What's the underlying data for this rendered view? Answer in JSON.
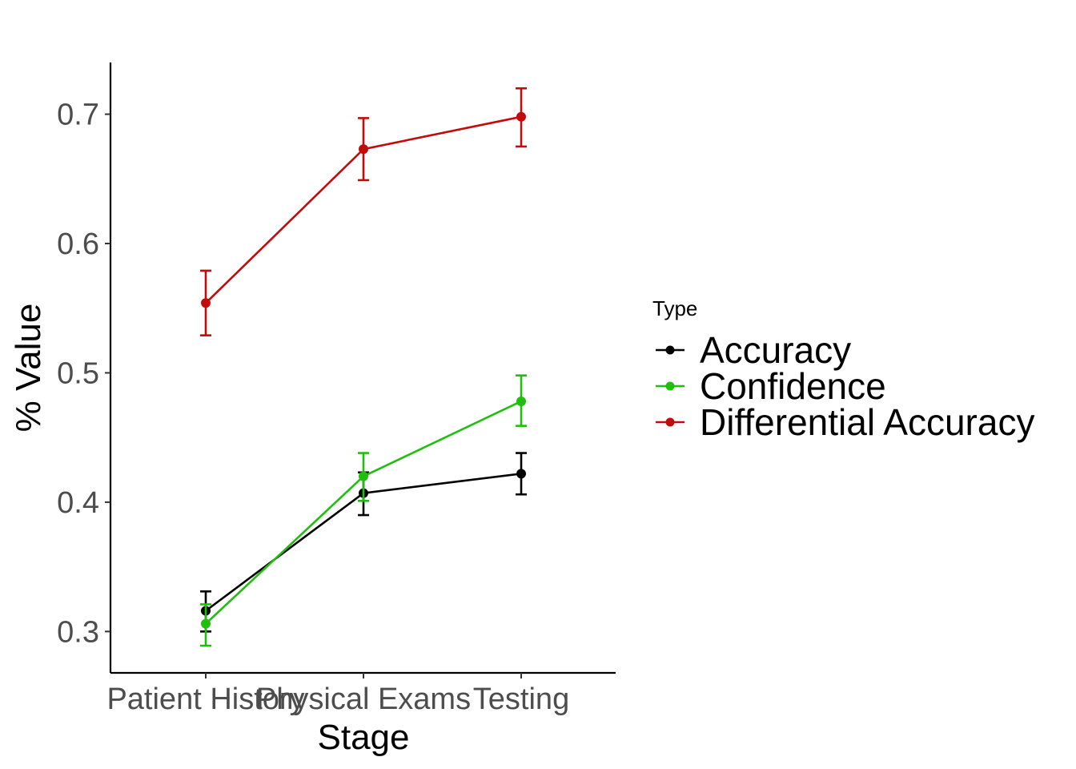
{
  "chart_data": {
    "type": "line",
    "xlabel": "Stage",
    "ylabel": "% Value",
    "categories": [
      "Patient History",
      "Physical Exams",
      "Testing"
    ],
    "ylim": [
      0.268,
      0.74
    ],
    "yticks": [
      0.3,
      0.4,
      0.5,
      0.6,
      0.7
    ],
    "ytick_labels": [
      "0.3",
      "0.4",
      "0.5",
      "0.6",
      "0.7"
    ],
    "grid": false,
    "legend_title": "Type",
    "legend_position": "right",
    "series": [
      {
        "name": "Accuracy",
        "color": "#000000",
        "values": [
          0.316,
          0.407,
          0.422
        ],
        "error_low": [
          0.3,
          0.39,
          0.406
        ],
        "error_high": [
          0.331,
          0.423,
          0.438
        ]
      },
      {
        "name": "Confidence",
        "color": "#1fbf0d",
        "values": [
          0.306,
          0.42,
          0.478
        ],
        "error_low": [
          0.289,
          0.401,
          0.459
        ],
        "error_high": [
          0.321,
          0.438,
          0.498
        ]
      },
      {
        "name": "Differential Accuracy",
        "color": "#c40b0b",
        "values": [
          0.554,
          0.673,
          0.698
        ],
        "error_low": [
          0.529,
          0.649,
          0.675
        ],
        "error_high": [
          0.579,
          0.697,
          0.72
        ]
      }
    ]
  }
}
